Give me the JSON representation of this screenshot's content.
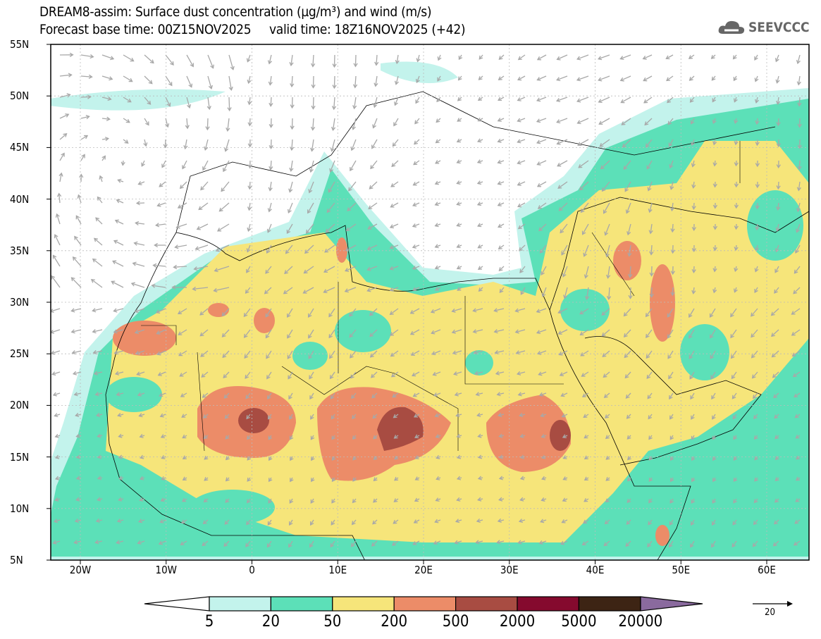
{
  "header": {
    "title_line1": "DREAM8-assim: Surface dust concentration (µg/m³) and wind (m/s)",
    "title_line2": "Forecast base time: 00Z15NOV2025     valid time: 18Z16NOV2025 (+42)",
    "logo_text": "SEEVCCC"
  },
  "axes": {
    "lat_labels": [
      "55N",
      "50N",
      "45N",
      "40N",
      "35N",
      "30N",
      "25N",
      "20N",
      "15N",
      "10N",
      "5N"
    ],
    "lon_labels": [
      "20W",
      "10W",
      "0",
      "10E",
      "20E",
      "30E",
      "40E",
      "50E",
      "60E"
    ]
  },
  "colorbar": {
    "labels": [
      "5",
      "20",
      "50",
      "200",
      "500",
      "2000",
      "5000",
      "20000"
    ],
    "colors": [
      "#c3f3ec",
      "#5ce0b8",
      "#f6e57a",
      "#ec8c68",
      "#a84c42",
      "#850a2e",
      "#3d2414"
    ],
    "over_color": "#8a6a9e",
    "under_color": "#ffffff"
  },
  "wind_legend": {
    "value": "20"
  }
}
